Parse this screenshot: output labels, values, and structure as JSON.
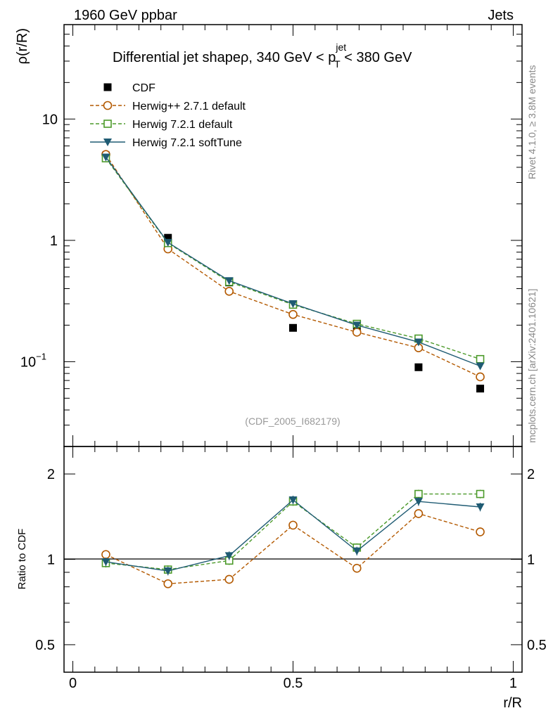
{
  "header": {
    "left": "1960 GeV ppbar",
    "right": "Jets"
  },
  "side_labels": {
    "rivet": "Rivet 4.1.0, ≥ 3.8M events",
    "mcplots": "mcplots.cern.ch [arXiv:2401.10621]"
  },
  "colors": {
    "cdf": "#000000",
    "herwig271": "#b35900",
    "herwig721": "#4c9a2a",
    "softtune": "#1f5b73",
    "reference": "#000000",
    "watermark": "#999999"
  },
  "chart_data": [
    {
      "id": "main",
      "type": "scatter",
      "title": {
        "prefix": "Differential jet shapeρ, 340 GeV < p",
        "sup": "jet",
        "sub": "T",
        "suffix": " < 380 GeV"
      },
      "ylabel": "ρ(r/R)",
      "yscale": "log",
      "ylim": [
        0.02,
        60
      ],
      "xlim": [
        -0.02,
        1.02
      ],
      "y_major_ticks": [
        0.1,
        1,
        10
      ],
      "y_tick_labels": [
        {
          "mantissa": "10",
          "exp": "−1"
        },
        {
          "mantissa": "1",
          "exp": ""
        },
        {
          "mantissa": "10",
          "exp": ""
        }
      ],
      "watermark": "(CDF_2005_I682179)",
      "x": [
        0.075,
        0.216,
        0.355,
        0.5,
        0.645,
        0.785,
        0.925
      ],
      "series": [
        {
          "name": "CDF",
          "values": [
            5.0,
            1.05,
            0.45,
            0.19,
            0.19,
            0.09,
            0.06
          ]
        },
        {
          "name": "Herwig++ 2.7.1 default",
          "values": [
            5.1,
            0.85,
            0.38,
            0.245,
            0.175,
            0.13,
            0.075
          ]
        },
        {
          "name": "Herwig 7.2.1 default",
          "values": [
            4.75,
            0.95,
            0.455,
            0.295,
            0.205,
            0.155,
            0.105
          ]
        },
        {
          "name": "Herwig 7.2.1 softTune",
          "values": [
            4.85,
            0.96,
            0.465,
            0.3,
            0.2,
            0.145,
            0.092
          ]
        }
      ]
    },
    {
      "id": "ratio",
      "type": "line",
      "ylabel": "Ratio to CDF",
      "xlabel": "r/R",
      "yscale": "log",
      "ylim": [
        0.4,
        2.5
      ],
      "xlim": [
        -0.02,
        1.02
      ],
      "x_tick_values": [
        0,
        0.5,
        1
      ],
      "x_tick_labels": [
        "0",
        "0.5",
        "1"
      ],
      "y_tick_values": [
        0.5,
        1,
        2
      ],
      "y_tick_labels": [
        "0.5",
        "1",
        "2"
      ],
      "x": [
        0.075,
        0.216,
        0.355,
        0.5,
        0.645,
        0.785,
        0.925
      ],
      "series": [
        {
          "name": "Herwig++ 2.7.1 default",
          "values": [
            1.04,
            0.82,
            0.85,
            1.32,
            0.93,
            1.45,
            1.25
          ]
        },
        {
          "name": "Herwig 7.2.1 default",
          "values": [
            0.97,
            0.92,
            0.99,
            1.6,
            1.1,
            1.7,
            1.7
          ]
        },
        {
          "name": "Herwig 7.2.1 softTune",
          "values": [
            0.98,
            0.91,
            1.03,
            1.62,
            1.07,
            1.6,
            1.53
          ]
        }
      ]
    }
  ]
}
